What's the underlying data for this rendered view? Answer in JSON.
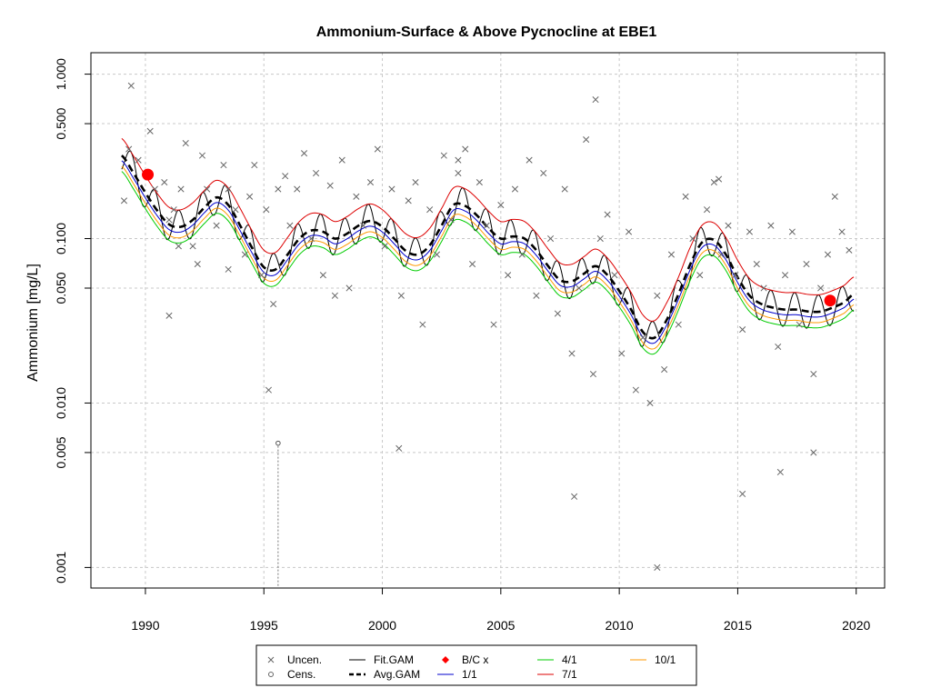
{
  "chart_data": {
    "type": "line",
    "title": "Ammonium-Surface & Above Pycnocline at EBE1",
    "ylabel": "Ammonium [mg/L]",
    "xlabel": "",
    "y_scale": "log",
    "xlim": [
      1987.7,
      2021.2
    ],
    "ylim": [
      0.00075,
      1.35
    ],
    "x_ticks": [
      "1990",
      "1995",
      "2000",
      "2005",
      "2010",
      "2015",
      "2020"
    ],
    "y_ticks": [
      "0.001",
      "0.005",
      "0.010",
      "0.050",
      "0.100",
      "0.500",
      "1.000"
    ],
    "grid": true,
    "legend_position": "bottom",
    "colors": {
      "uncensored": "#666666",
      "censored": "#555555",
      "fit_gam": "#000000",
      "avg_gam": "#000000",
      "bc_x": "#ff0000",
      "s1_1": "#0000cc",
      "s4_1": "#00cc00",
      "s7_1": "#dd0000",
      "s10_1": "#ff9900",
      "grid": "#c8c8c8"
    },
    "legend": [
      {
        "label": "Uncen.",
        "symbol": "x",
        "color": "#666666"
      },
      {
        "label": "Cens.",
        "symbol": "o",
        "color": "#666666"
      },
      {
        "label": "Fit.GAM",
        "symbol": "line",
        "color": "#000000"
      },
      {
        "label": "Avg.GAM",
        "symbol": "dash",
        "color": "#000000"
      },
      {
        "label": "B/C x",
        "symbol": "dot",
        "color": "#ff0000"
      },
      {
        "label": "1/1",
        "symbol": "line",
        "color": "#0000cc"
      },
      {
        "label": "4/1",
        "symbol": "line",
        "color": "#00cc00"
      },
      {
        "label": "7/1",
        "symbol": "line",
        "color": "#dd0000"
      },
      {
        "label": "10/1",
        "symbol": "line",
        "color": "#ff9900"
      }
    ],
    "avg_gam": {
      "x": [
        1989.0,
        1989.5,
        1990.0,
        1990.5,
        1991.0,
        1991.5,
        1992.0,
        1992.5,
        1993.0,
        1993.5,
        1994.0,
        1994.5,
        1995.0,
        1995.5,
        1996.0,
        1996.5,
        1997.0,
        1997.5,
        1998.0,
        1998.5,
        1999.0,
        1999.5,
        2000.0,
        2000.5,
        2001.0,
        2001.5,
        2002.0,
        2002.5,
        2003.0,
        2003.5,
        2004.0,
        2004.5,
        2005.0,
        2005.5,
        2006.0,
        2006.5,
        2007.0,
        2007.5,
        2008.0,
        2008.5,
        2009.0,
        2009.5,
        2010.0,
        2010.5,
        2011.0,
        2011.5,
        2012.0,
        2012.5,
        2013.0,
        2013.5,
        2014.0,
        2014.5,
        2015.0,
        2015.5,
        2016.0,
        2016.5,
        2017.0,
        2017.5,
        2018.0,
        2018.5,
        2019.0,
        2019.5,
        2019.9
      ],
      "y": [
        0.32,
        0.25,
        0.19,
        0.148,
        0.122,
        0.118,
        0.13,
        0.155,
        0.178,
        0.16,
        0.12,
        0.088,
        0.067,
        0.065,
        0.08,
        0.1,
        0.112,
        0.11,
        0.1,
        0.107,
        0.12,
        0.128,
        0.118,
        0.1,
        0.084,
        0.08,
        0.091,
        0.12,
        0.16,
        0.158,
        0.138,
        0.115,
        0.1,
        0.103,
        0.1,
        0.085,
        0.068,
        0.056,
        0.055,
        0.061,
        0.068,
        0.06,
        0.048,
        0.037,
        0.027,
        0.025,
        0.032,
        0.046,
        0.07,
        0.095,
        0.098,
        0.08,
        0.058,
        0.045,
        0.04,
        0.038,
        0.037,
        0.037,
        0.036,
        0.036,
        0.038,
        0.041,
        0.046
      ]
    },
    "seasonal_factors": {
      "s7_1": 1.27,
      "s1_1": 0.93,
      "s4_1": 0.8,
      "s10_1": 0.86
    },
    "fit_gam_amplitude": 0.6,
    "bc_points": {
      "x": [
        1990.1,
        2018.9
      ],
      "y": [
        0.245,
        0.042
      ]
    },
    "uncensored": {
      "x": [
        1989.4,
        1989.1,
        1989.3,
        1989.7,
        1990.2,
        1990.4,
        1990.8,
        1991.0,
        1991.2,
        1991.4,
        1991.5,
        1991.7,
        1992.0,
        1992.2,
        1992.4,
        1992.6,
        1993.0,
        1993.3,
        1993.5,
        1993.8,
        1994.2,
        1994.4,
        1994.6,
        1994.9,
        1995.1,
        1995.4,
        1995.6,
        1995.9,
        1996.1,
        1996.4,
        1996.7,
        1997.0,
        1997.2,
        1997.5,
        1997.8,
        1998.0,
        1998.3,
        1998.6,
        1998.9,
        1999.2,
        1999.5,
        1999.8,
        2000.1,
        2000.4,
        2000.8,
        2001.1,
        2001.4,
        2001.7,
        2002.0,
        2002.3,
        2002.6,
        2002.9,
        2003.2,
        2003.5,
        2003.8,
        2004.1,
        2004.4,
        2004.7,
        2005.0,
        2005.3,
        2005.6,
        2005.9,
        2006.2,
        2006.5,
        2006.8,
        2007.1,
        2007.4,
        2007.7,
        2008.0,
        2008.3,
        2008.6,
        2008.9,
        2009.2,
        2009.5,
        2009.8,
        2010.1,
        2010.4,
        2010.7,
        2011.0,
        2011.3,
        2011.6,
        2011.9,
        2012.2,
        2012.5,
        2012.8,
        2013.1,
        2013.4,
        2013.7,
        2014.0,
        2014.3,
        2014.6,
        2014.9,
        2015.2,
        2015.5,
        2015.8,
        2016.1,
        2016.4,
        2016.7,
        2017.0,
        2017.3,
        2017.6,
        2017.9,
        2018.2,
        2018.5,
        2018.8,
        2019.1,
        2019.4,
        2019.7,
        1995.2,
        2000.7,
        2008.1,
        2011.6,
        2015.2,
        2016.8,
        2018.2,
        2009.0,
        2014.2,
        1991.0,
        1993.5,
        2003.2
      ],
      "y": [
        0.85,
        0.17,
        0.35,
        0.3,
        0.45,
        0.2,
        0.22,
        0.13,
        0.15,
        0.09,
        0.2,
        0.38,
        0.09,
        0.07,
        0.32,
        0.2,
        0.12,
        0.28,
        0.2,
        0.15,
        0.08,
        0.18,
        0.28,
        0.06,
        0.15,
        0.04,
        0.2,
        0.24,
        0.12,
        0.2,
        0.33,
        0.1,
        0.25,
        0.06,
        0.21,
        0.045,
        0.3,
        0.05,
        0.18,
        0.12,
        0.22,
        0.35,
        0.09,
        0.2,
        0.045,
        0.17,
        0.22,
        0.03,
        0.15,
        0.08,
        0.32,
        0.13,
        0.25,
        0.35,
        0.07,
        0.22,
        0.12,
        0.03,
        0.16,
        0.06,
        0.2,
        0.08,
        0.3,
        0.045,
        0.25,
        0.1,
        0.035,
        0.2,
        0.02,
        0.05,
        0.4,
        0.015,
        0.1,
        0.14,
        0.06,
        0.02,
        0.11,
        0.012,
        0.025,
        0.01,
        0.045,
        0.016,
        0.08,
        0.03,
        0.18,
        0.1,
        0.06,
        0.15,
        0.22,
        0.08,
        0.12,
        0.06,
        0.028,
        0.11,
        0.07,
        0.05,
        0.12,
        0.022,
        0.06,
        0.11,
        0.03,
        0.07,
        0.015,
        0.05,
        0.08,
        0.18,
        0.11,
        0.085,
        0.012,
        0.0053,
        0.0027,
        0.001,
        0.0028,
        0.0038,
        0.005,
        0.7,
        0.23,
        0.034,
        0.065,
        0.3
      ]
    },
    "censored": {
      "x": [
        1995.6
      ],
      "y": [
        0.0057
      ]
    }
  }
}
